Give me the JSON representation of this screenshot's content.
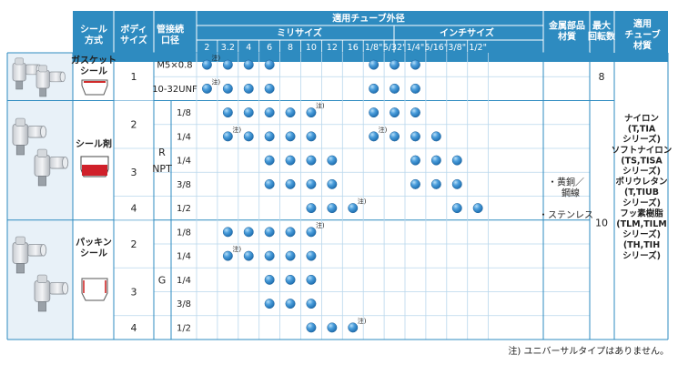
{
  "header": {
    "seal_type": "シール\n方式",
    "body_size": "ボディ\nサイズ",
    "port_size": "管接続\n口径",
    "applicable_tube_od": "適用チューブ外径",
    "mm_size": "ミリサイズ",
    "inch_size": "インチサイズ",
    "metal_parts": "金属部品\n材質",
    "max_rotation": "最大\n回転数",
    "tube_material": "適用\nチューブ\n材質"
  },
  "tube_sizes": [
    "2",
    "3.2",
    "4",
    "6",
    "8",
    "10",
    "12",
    "16",
    "1/8\"",
    "5/32\"",
    "1/4\"",
    "5/16\"",
    "3/8\"",
    "1/2\""
  ],
  "seal_groups": [
    {
      "label": "ガスケット\nシール",
      "icon": "gasket-seal-icon"
    },
    {
      "label": "シール剤",
      "icon": "sealant-icon"
    },
    {
      "label": "パッキン\nシール",
      "icon": "packing-seal-icon"
    }
  ],
  "body_sizes": [
    "1",
    "2",
    "3",
    "4",
    "2",
    "3",
    "4"
  ],
  "thread_types": [
    {
      "label": "R\nNPT"
    },
    {
      "label": "G"
    }
  ],
  "port_labels": [
    "M5×0.8",
    "10-32UNF",
    "1/8",
    "1/4",
    "1/4",
    "3/8",
    "1/2",
    "1/8",
    "1/4",
    "1/4",
    "3/8",
    "1/2"
  ],
  "note_mark": "注)",
  "rows": [
    {
      "dots": [
        0,
        1,
        2,
        3,
        8,
        9,
        10
      ],
      "notes": [
        0
      ]
    },
    {
      "dots": [
        0,
        1,
        2,
        3,
        8,
        9,
        10
      ],
      "notes": [
        0
      ]
    },
    {
      "dots": [
        1,
        2,
        3,
        4,
        5,
        8,
        9,
        10
      ],
      "notes": [
        5
      ]
    },
    {
      "dots": [
        1,
        2,
        3,
        4,
        5,
        8,
        9,
        10,
        11
      ],
      "notes": [
        1,
        8
      ]
    },
    {
      "dots": [
        3,
        4,
        5,
        6,
        10,
        11,
        12
      ],
      "notes": []
    },
    {
      "dots": [
        3,
        4,
        5,
        6,
        10,
        11,
        12
      ],
      "notes": []
    },
    {
      "dots": [
        5,
        6,
        7,
        12,
        13
      ],
      "notes": [
        7
      ]
    },
    {
      "dots": [
        1,
        2,
        3,
        4,
        5
      ],
      "notes": [
        5
      ]
    },
    {
      "dots": [
        1,
        2,
        3,
        4,
        5
      ],
      "notes": [
        1
      ]
    },
    {
      "dots": [
        3,
        4,
        5
      ],
      "notes": []
    },
    {
      "dots": [
        3,
        4,
        5
      ],
      "notes": []
    },
    {
      "dots": [
        5,
        6,
        7
      ],
      "notes": [
        7
      ]
    }
  ],
  "metal_material": "・黄銅／\n　鋼線\n\n・ステンレス",
  "rotation_values": [
    "8",
    "10"
  ],
  "tube_materials": "ナイロン\n(T,TIA\nシリーズ)\nソフトナイロン\n(TS,TISA\nシリーズ)\nポリウレタン\n(T,TIUB\nシリーズ)\nフッ素樹脂\n(TLM,TILM\nシリーズ)\n(TH,TIH\nシリーズ)",
  "footnote": "注) ユニバーサルタイプはありません。",
  "colors": {
    "header_bg": "#2e8bc0",
    "header_text": "#ffffff",
    "grid_line": "#2e8bc0",
    "light_line": "#b9d7ec",
    "product_bg": "#e8f1f8",
    "dot_fill": "#3a8fd0",
    "dot_highlight": "#9fd2f5",
    "sealant_red": "#d0202a"
  }
}
